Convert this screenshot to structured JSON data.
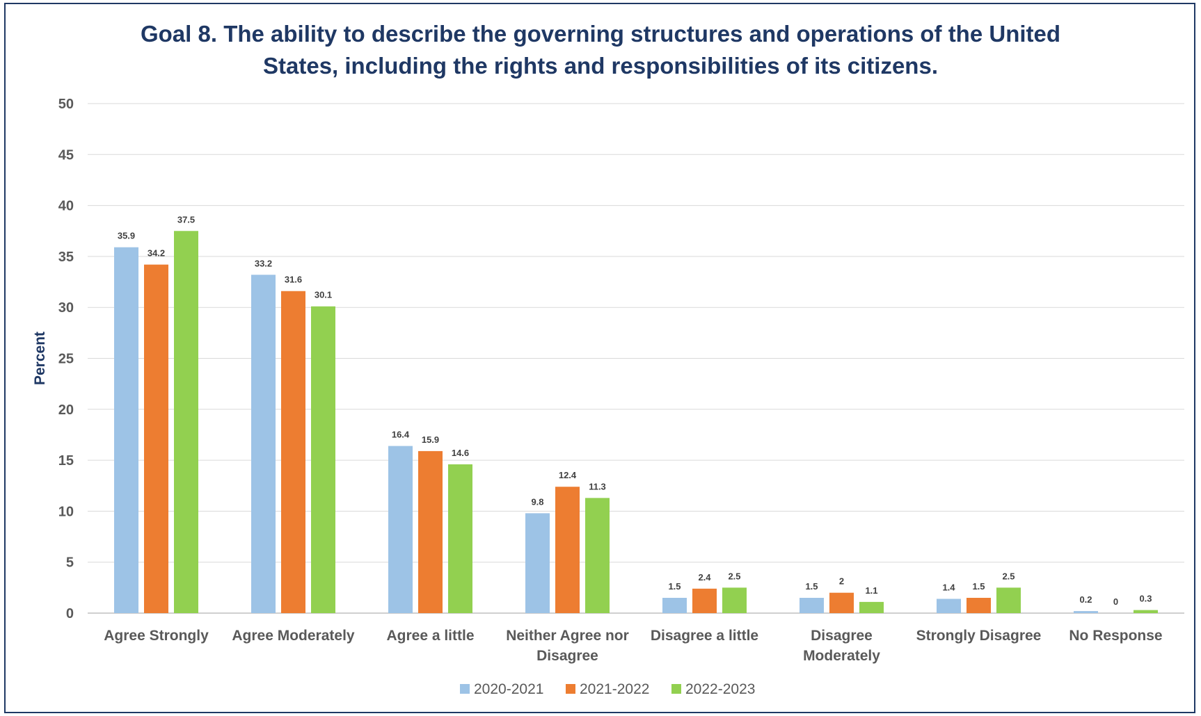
{
  "chart_data": {
    "type": "bar",
    "title_lines": [
      "Goal 8. The ability to describe the governing structures and operations of the United",
      "States, including the rights and responsibilities of its citizens."
    ],
    "xlabel": "",
    "ylabel": "Percent",
    "ylim": [
      0,
      50
    ],
    "yticks": [
      0,
      5,
      10,
      15,
      20,
      25,
      30,
      35,
      40,
      45,
      50
    ],
    "grid": true,
    "legend_position": "bottom",
    "categories": [
      [
        "Agree Strongly"
      ],
      [
        "Agree Moderately"
      ],
      [
        "Agree a little"
      ],
      [
        "Neither Agree nor",
        "Disagree"
      ],
      [
        "Disagree a little"
      ],
      [
        "Disagree",
        "Moderately"
      ],
      [
        "Strongly Disagree"
      ],
      [
        "No Response"
      ]
    ],
    "series": [
      {
        "name": "2020-2021",
        "color": "#9dc3e6",
        "values": [
          35.9,
          33.2,
          16.4,
          9.8,
          1.5,
          1.5,
          1.4,
          0.2
        ]
      },
      {
        "name": "2021-2022",
        "color": "#ed7d31",
        "values": [
          34.2,
          31.6,
          15.9,
          12.4,
          2.4,
          2,
          1.5,
          0
        ]
      },
      {
        "name": "2022-2023",
        "color": "#92d050",
        "values": [
          37.5,
          30.1,
          14.6,
          11.3,
          2.5,
          1.1,
          2.5,
          0.3
        ]
      }
    ]
  }
}
